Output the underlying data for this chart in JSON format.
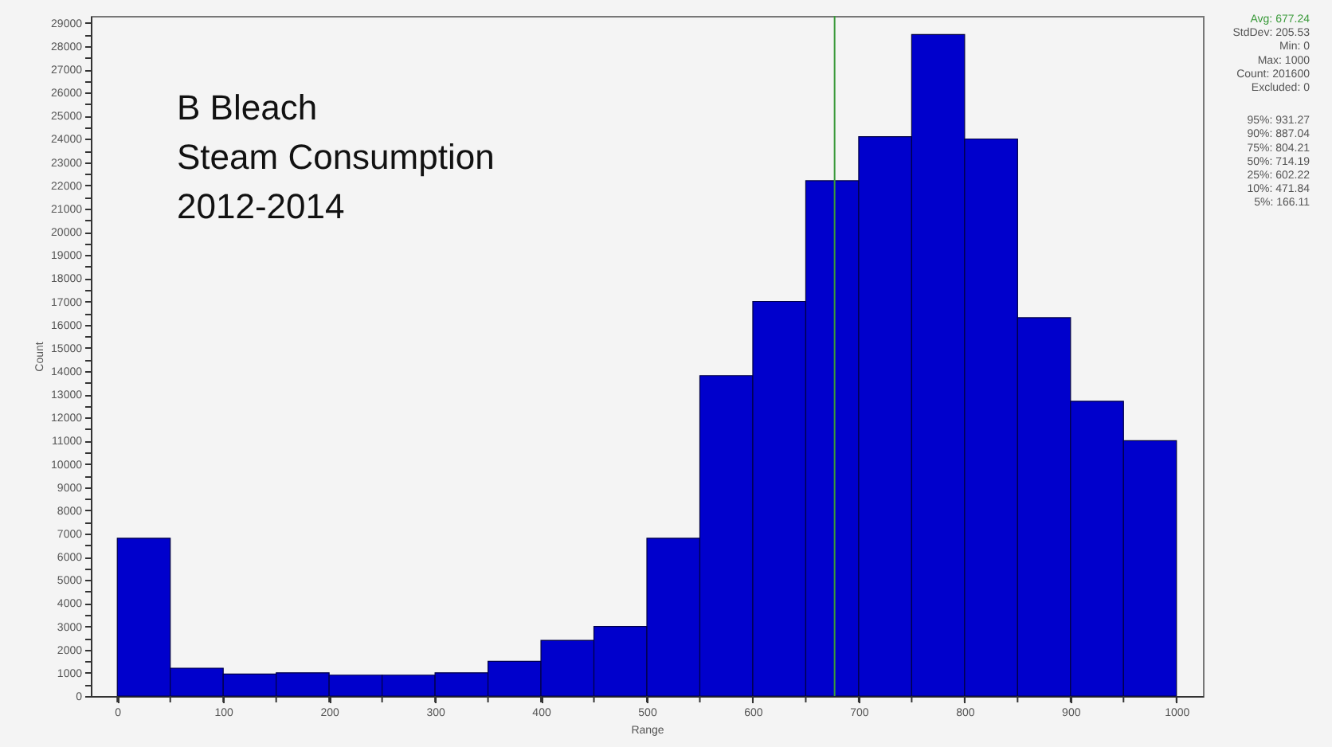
{
  "chart_data": {
    "type": "histogram",
    "title": "B Bleach\nSteam Consumption\n2012-2014",
    "xlabel": "Range",
    "ylabel": "Count",
    "bins": [
      0,
      50,
      100,
      150,
      200,
      250,
      300,
      350,
      400,
      450,
      500,
      550,
      600,
      650,
      700,
      750,
      800,
      850,
      900,
      950,
      1000
    ],
    "values": [
      6800,
      1200,
      950,
      1000,
      900,
      900,
      1000,
      1500,
      2400,
      3000,
      6800,
      13800,
      17000,
      22200,
      24100,
      28500,
      24000,
      16300,
      12700,
      11000
    ],
    "color": "#0000cc",
    "xlim": [
      -25,
      1025
    ],
    "ylim": [
      0,
      29300
    ],
    "xticks": [
      0,
      {
        "value": 50,
        "label": null
      },
      100,
      {
        "value": 150,
        "label": null
      },
      200,
      {
        "value": 250,
        "label": null
      },
      300,
      {
        "value": 350,
        "label": null
      },
      400,
      {
        "value": 450,
        "label": null
      },
      500,
      {
        "value": 550,
        "label": null
      },
      600,
      {
        "value": 650,
        "label": null
      },
      700,
      {
        "value": 750,
        "label": null
      },
      800,
      {
        "value": 850,
        "label": null
      },
      900,
      {
        "value": 950,
        "label": null
      },
      1000
    ],
    "yticks": [
      0,
      {
        "value": 500,
        "label": null
      },
      1000,
      {
        "value": 1500,
        "label": null
      },
      2000,
      {
        "value": 2500,
        "label": null
      },
      3000,
      {
        "value": 3500,
        "label": null
      },
      4000,
      {
        "value": 4500,
        "label": null
      },
      5000,
      {
        "value": 5500,
        "label": null
      },
      6000,
      {
        "value": 6500,
        "label": null
      },
      7000,
      {
        "value": 7500,
        "label": null
      },
      8000,
      {
        "value": 8500,
        "label": null
      },
      9000,
      {
        "value": 9500,
        "label": null
      },
      10000,
      {
        "value": 10500,
        "label": null
      },
      11000,
      {
        "value": 11500,
        "label": null
      },
      12000,
      {
        "value": 12500,
        "label": null
      },
      13000,
      {
        "value": 13500,
        "label": null
      },
      14000,
      {
        "value": 14500,
        "label": null
      },
      15000,
      {
        "value": 15500,
        "label": null
      },
      16000,
      {
        "value": 16500,
        "label": null
      },
      17000,
      {
        "value": 17500,
        "label": null
      },
      18000,
      {
        "value": 18500,
        "label": null
      },
      19000,
      {
        "value": 19500,
        "label": null
      },
      20000,
      {
        "value": 20500,
        "label": null
      },
      21000,
      {
        "value": 21500,
        "label": null
      },
      22000,
      {
        "value": 22500,
        "label": null
      },
      23000,
      {
        "value": 23500,
        "label": null
      },
      24000,
      {
        "value": 24500,
        "label": null
      },
      25000,
      {
        "value": 25500,
        "label": null
      },
      26000,
      {
        "value": 26500,
        "label": null
      },
      27000,
      {
        "value": 27500,
        "label": null
      },
      28000,
      {
        "value": 28500,
        "label": null
      },
      29000
    ],
    "grid": false,
    "ref_lines": [
      {
        "axis": "x",
        "value": 677.24,
        "label": "Avg: 677.24",
        "color": "#3a9a3a"
      }
    ],
    "annotations": [
      "StdDev: 205.53",
      "Min: 0",
      "Max: 1000",
      "Count: 201600",
      "Excluded: 0",
      "95%: 931.27",
      "90%: 887.04",
      "75%: 804.21",
      "50%: 714.19",
      "25%: 602.22",
      "10%: 471.84",
      "5%: 166.11"
    ]
  }
}
